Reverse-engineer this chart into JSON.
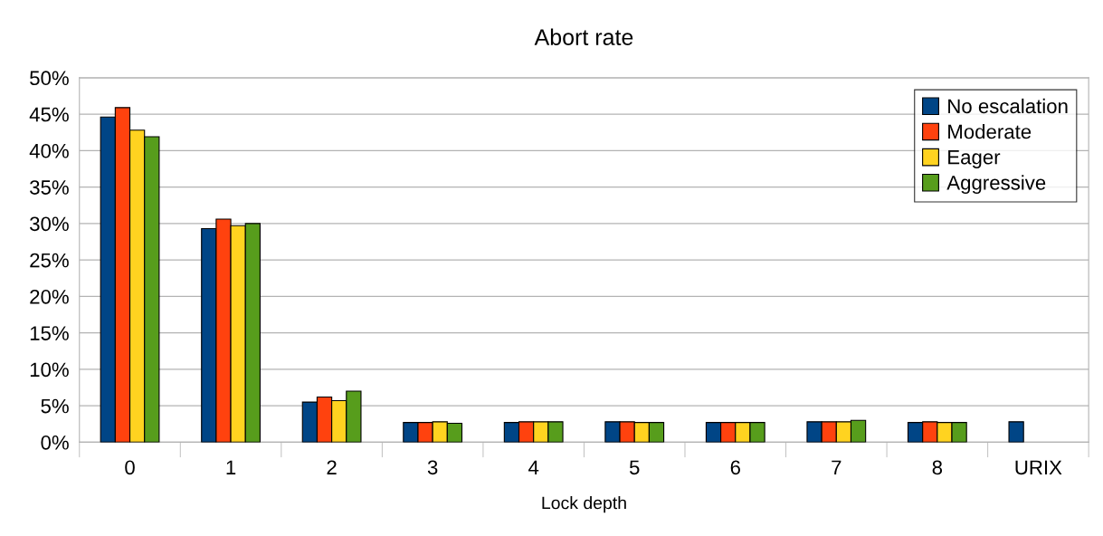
{
  "chart_data": {
    "type": "bar",
    "title": "Abort rate",
    "xlabel": "Lock depth",
    "categories": [
      "0",
      "1",
      "2",
      "3",
      "4",
      "5",
      "6",
      "7",
      "8",
      "URIX"
    ],
    "series": [
      {
        "name": "No escalation",
        "color": "#004586",
        "values": [
          44.6,
          29.3,
          5.5,
          2.7,
          2.7,
          2.8,
          2.7,
          2.8,
          2.7,
          2.8
        ]
      },
      {
        "name": "Moderate",
        "color": "#ff420e",
        "values": [
          45.9,
          30.6,
          6.2,
          2.7,
          2.8,
          2.8,
          2.7,
          2.8,
          2.8,
          null
        ]
      },
      {
        "name": "Eager",
        "color": "#ffd320",
        "values": [
          42.8,
          29.7,
          5.7,
          2.8,
          2.8,
          2.7,
          2.7,
          2.8,
          2.7,
          null
        ]
      },
      {
        "name": "Aggressive",
        "color": "#579d1c",
        "values": [
          41.9,
          30.0,
          7.0,
          2.6,
          2.8,
          2.7,
          2.7,
          3.0,
          2.7,
          null
        ]
      }
    ],
    "ylim": [
      0,
      50
    ],
    "yticks": [
      {
        "value": 0,
        "label": "0%"
      },
      {
        "value": 5,
        "label": "5%"
      },
      {
        "value": 10,
        "label": "10%"
      },
      {
        "value": 15,
        "label": "15%"
      },
      {
        "value": 20,
        "label": "20%"
      },
      {
        "value": 25,
        "label": "25%"
      },
      {
        "value": 30,
        "label": "30%"
      },
      {
        "value": 35,
        "label": "35%"
      },
      {
        "value": 40,
        "label": "40%"
      },
      {
        "value": 45,
        "label": "45%"
      },
      {
        "value": 50,
        "label": "50%"
      }
    ],
    "grid": "y",
    "legend": "top right"
  }
}
